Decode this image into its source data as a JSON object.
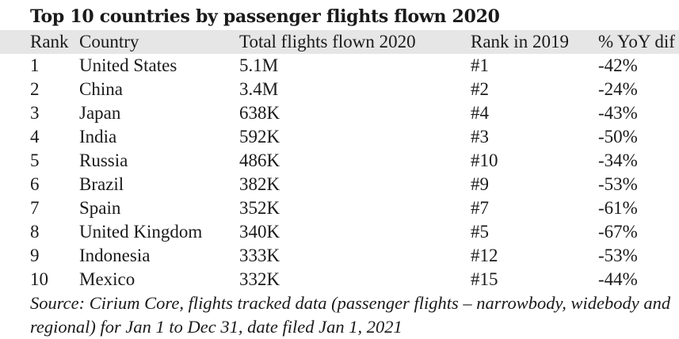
{
  "title": "Top 10 countries by passenger flights flown 2020",
  "table": {
    "headers": {
      "rank": "Rank",
      "country": "Country",
      "total": "Total flights flown 2020",
      "rank_2019": "Rank in 2019",
      "yoy": "% YoY dif"
    },
    "rows": [
      {
        "rank": "1",
        "country": "United States",
        "total": "5.1M",
        "rank_2019": "#1",
        "yoy": "-42%"
      },
      {
        "rank": "2",
        "country": "China",
        "total": "3.4M",
        "rank_2019": "#2",
        "yoy": "-24%"
      },
      {
        "rank": "3",
        "country": "Japan",
        "total": "638K",
        "rank_2019": "#4",
        "yoy": "-43%"
      },
      {
        "rank": "4",
        "country": "India",
        "total": "592K",
        "rank_2019": "#3",
        "yoy": "-50%"
      },
      {
        "rank": "5",
        "country": "Russia",
        "total": "486K",
        "rank_2019": "#10",
        "yoy": "-34%"
      },
      {
        "rank": "6",
        "country": "Brazil",
        "total": "382K",
        "rank_2019": "#9",
        "yoy": "-53%"
      },
      {
        "rank": "7",
        "country": "Spain",
        "total": "352K",
        "rank_2019": "#7",
        "yoy": "-61%"
      },
      {
        "rank": "8",
        "country": "United Kingdom",
        "total": "340K",
        "rank_2019": "#5",
        "yoy": "-67%"
      },
      {
        "rank": "9",
        "country": "Indonesia",
        "total": "333K",
        "rank_2019": "#12",
        "yoy": "-53%"
      },
      {
        "rank": "10",
        "country": "Mexico",
        "total": "332K",
        "rank_2019": "#15",
        "yoy": "-44%"
      }
    ]
  },
  "source": "Source: Cirium Core, flights tracked data (passenger flights – narrowbody, widebody and regional) for Jan 1 to Dec 31, date filed Jan 1, 2021"
}
